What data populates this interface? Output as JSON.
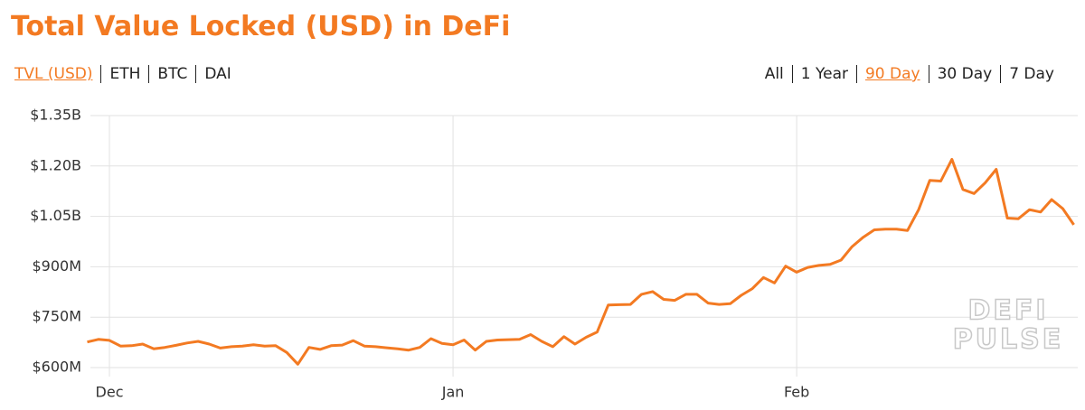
{
  "chart_data": {
    "type": "line",
    "title": "Total Value Locked (USD) in DeFi",
    "categories": [
      null,
      null,
      "Dec",
      null,
      null,
      null,
      null,
      null,
      null,
      null,
      null,
      null,
      null,
      null,
      null,
      null,
      null,
      null,
      null,
      null,
      null,
      null,
      null,
      null,
      null,
      null,
      null,
      null,
      null,
      null,
      null,
      null,
      null,
      "Jan",
      null,
      null,
      null,
      null,
      null,
      null,
      null,
      null,
      null,
      null,
      null,
      null,
      null,
      null,
      null,
      null,
      null,
      null,
      null,
      null,
      null,
      null,
      null,
      null,
      null,
      null,
      null,
      null,
      null,
      null,
      "Feb",
      null,
      null,
      null,
      null,
      null,
      null,
      null,
      null,
      null,
      null,
      null,
      null,
      null,
      null,
      null,
      null,
      null,
      null,
      null,
      null,
      null,
      null,
      null,
      null,
      null
    ],
    "series": [
      {
        "name": "TVL (USD)",
        "color": "#f37a22",
        "values": [
          676,
          684,
          681,
          664,
          665,
          670,
          656,
          660,
          666,
          673,
          678,
          670,
          658,
          662,
          664,
          668,
          664,
          665,
          645,
          610,
          660,
          654,
          665,
          667,
          680,
          664,
          662,
          659,
          656,
          652,
          660,
          686,
          672,
          668,
          682,
          652,
          678,
          682,
          683,
          684,
          698,
          678,
          662,
          692,
          670,
          690,
          706,
          786,
          787,
          788,
          818,
          826,
          803,
          800,
          818,
          818,
          792,
          788,
          790,
          815,
          835,
          868,
          852,
          902,
          884,
          898,
          904,
          907,
          920,
          960,
          988,
          1010,
          1012,
          1012,
          1008,
          1070,
          1157,
          1155,
          1220,
          1130,
          1118,
          1150,
          1190,
          1045,
          1043,
          1070,
          1063,
          1100,
          1073,
          1025
        ]
      }
    ],
    "ylim": [
      600,
      1350
    ],
    "yticks": [
      {
        "value": 600,
        "label": "$600M"
      },
      {
        "value": 750,
        "label": "$750M"
      },
      {
        "value": 900,
        "label": "$900M"
      },
      {
        "value": 1050,
        "label": "$1.05B"
      },
      {
        "value": 1200,
        "label": "$1.20B"
      },
      {
        "value": 1350,
        "label": "$1.35B"
      }
    ],
    "grid": true
  },
  "tabs": {
    "metric": {
      "options": [
        "TVL (USD)",
        "ETH",
        "BTC",
        "DAI"
      ],
      "active": 0
    },
    "range": {
      "options": [
        "All",
        "1 Year",
        "90 Day",
        "30 Day",
        "7 Day"
      ],
      "active": 2
    }
  },
  "watermark": [
    "DEFI",
    "PULSE"
  ]
}
